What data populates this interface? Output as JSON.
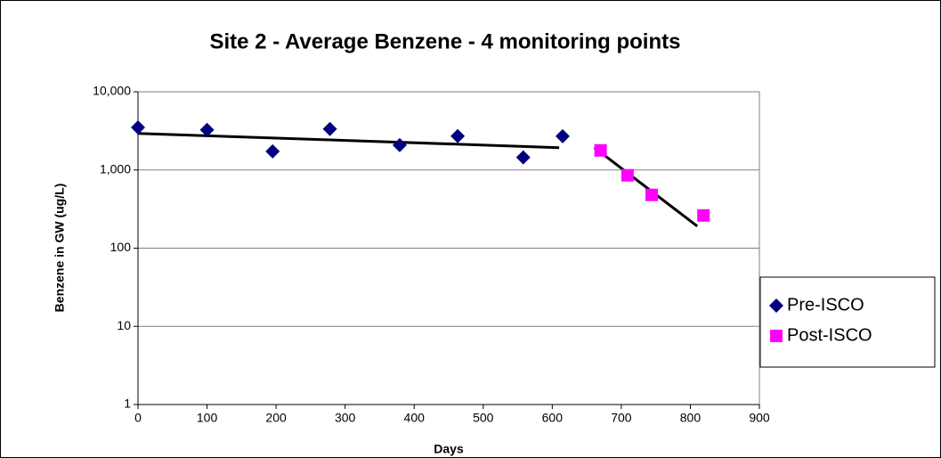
{
  "chart_data": {
    "type": "scatter",
    "title": "Site 2 - Average Benzene - 4 monitoring points",
    "xlabel": "Days",
    "ylabel": "Benzene in GW (ug/L)",
    "xlim": [
      0,
      900
    ],
    "xticks": [
      0,
      100,
      200,
      300,
      400,
      500,
      600,
      700,
      800,
      900
    ],
    "ylim": [
      1,
      10000
    ],
    "ylog": true,
    "yticks": [
      1,
      10,
      100,
      {
        "value": 1000,
        "label": "1,000"
      },
      {
        "value": 10000,
        "label": "10,000"
      }
    ],
    "grid": true,
    "legend": "right",
    "series": [
      {
        "name": "Pre-ISCO",
        "color": "#000080",
        "marker": "diamond",
        "x": [
          0,
          100,
          195,
          278,
          379,
          463,
          558,
          615
        ],
        "values": [
          3500,
          3260,
          1730,
          3340,
          2080,
          2710,
          1450,
          2700
        ]
      },
      {
        "name": "Post-ISCO",
        "color": "#ff00ff",
        "marker": "square",
        "x": [
          670,
          709,
          744,
          819
        ],
        "values": [
          1780,
          855,
          480,
          262
        ]
      }
    ],
    "trendlines": [
      {
        "color": "#000000",
        "x": [
          0,
          610
        ],
        "y": [
          2930,
          1930
        ]
      },
      {
        "color": "#000000",
        "x": [
          661,
          810
        ],
        "y": [
          1930,
          191
        ]
      }
    ]
  }
}
